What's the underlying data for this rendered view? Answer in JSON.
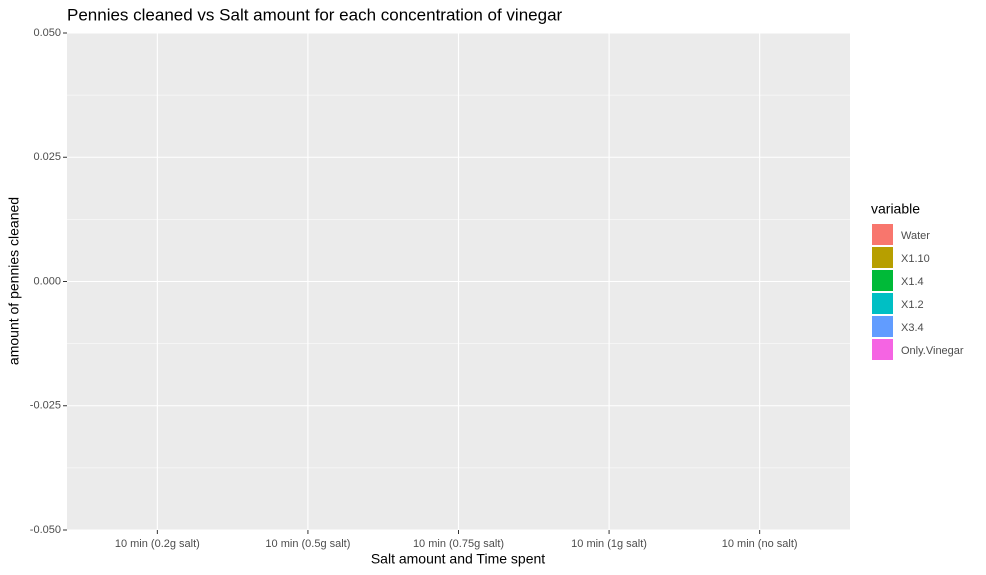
{
  "chart_data": {
    "type": "bar",
    "title": "Pennies cleaned vs Salt amount for each concentration of vinegar",
    "x_label": "Salt amount and Time spent",
    "y_label": "amount of pennies cleaned",
    "legend_title": "variable",
    "categories": [
      "10 min (0.2g salt)",
      "10 min (0.5g salt)",
      "10 min (0.75g salt)",
      "10 min (1g salt)",
      "10 min (no salt)"
    ],
    "series": [
      {
        "name": "Water",
        "color": "#F8766D",
        "values": [
          0,
          0,
          0,
          0,
          0
        ]
      },
      {
        "name": "X1.10",
        "color": "#B79F00",
        "values": [
          0,
          0,
          0,
          0,
          0
        ]
      },
      {
        "name": "X1.4",
        "color": "#00BA38",
        "values": [
          0,
          0,
          0,
          0,
          0
        ]
      },
      {
        "name": "X1.2",
        "color": "#00BFC4",
        "values": [
          0,
          0,
          0,
          0,
          0
        ]
      },
      {
        "name": "X3.4",
        "color": "#619CFF",
        "values": [
          0,
          0,
          0,
          0,
          0
        ]
      },
      {
        "name": "Only.Vinegar",
        "color": "#F564E3",
        "values": [
          0,
          0,
          0,
          0,
          0
        ]
      }
    ],
    "ylim": [
      -0.05,
      0.05
    ],
    "yticks": [
      {
        "value": -0.05,
        "label": "-0.050"
      },
      {
        "value": -0.025,
        "label": "-0.025"
      },
      {
        "value": 0,
        "label": "0.000"
      },
      {
        "value": 0.025,
        "label": "0.025"
      },
      {
        "value": 0.05,
        "label": "0.050"
      }
    ],
    "grid": true,
    "legend_position": "right"
  }
}
